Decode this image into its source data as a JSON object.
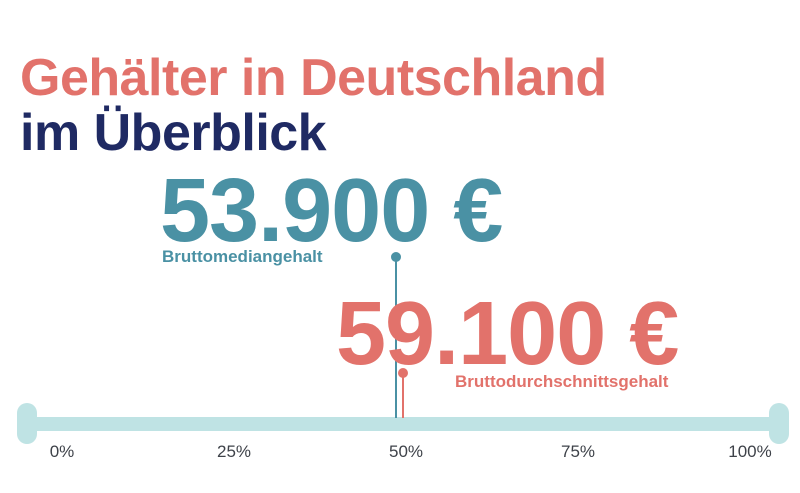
{
  "title": {
    "line1": "Gehälter in Deutschland",
    "line2": "im Überblick"
  },
  "stats": {
    "median": {
      "value": "53.900 €",
      "label": "Bruttomediangehalt"
    },
    "average": {
      "value": "59.100 €",
      "label": "Bruttodurchschnittsgehalt"
    }
  },
  "scale": {
    "ticks": [
      "0%",
      "25%",
      "50%",
      "75%",
      "100%"
    ]
  },
  "colors": {
    "coral": "#E2726B",
    "navy": "#1F2A63",
    "teal": "#4A91A4",
    "track": "#BFE3E4",
    "tick-text": "#3E4249",
    "background": "#FFFFFF"
  },
  "chart_data": {
    "type": "scatter",
    "title": "Gehälter in Deutschland im Überblick",
    "series": [
      {
        "name": "Bruttomediangehalt",
        "value_eur": 53900,
        "display_value": "53.900 €",
        "marker_position_pct": 48.5,
        "color": "#4A91A4"
      },
      {
        "name": "Bruttodurchschnittsgehalt",
        "value_eur": 59100,
        "display_value": "59.100 €",
        "marker_position_pct": 49.6,
        "color": "#E2726B"
      }
    ],
    "xlabel": "",
    "ylabel": "",
    "x_ticks": [
      "0%",
      "25%",
      "50%",
      "75%",
      "100%"
    ],
    "xlim": [
      0,
      100
    ],
    "grid": false,
    "legend_position": "none"
  }
}
